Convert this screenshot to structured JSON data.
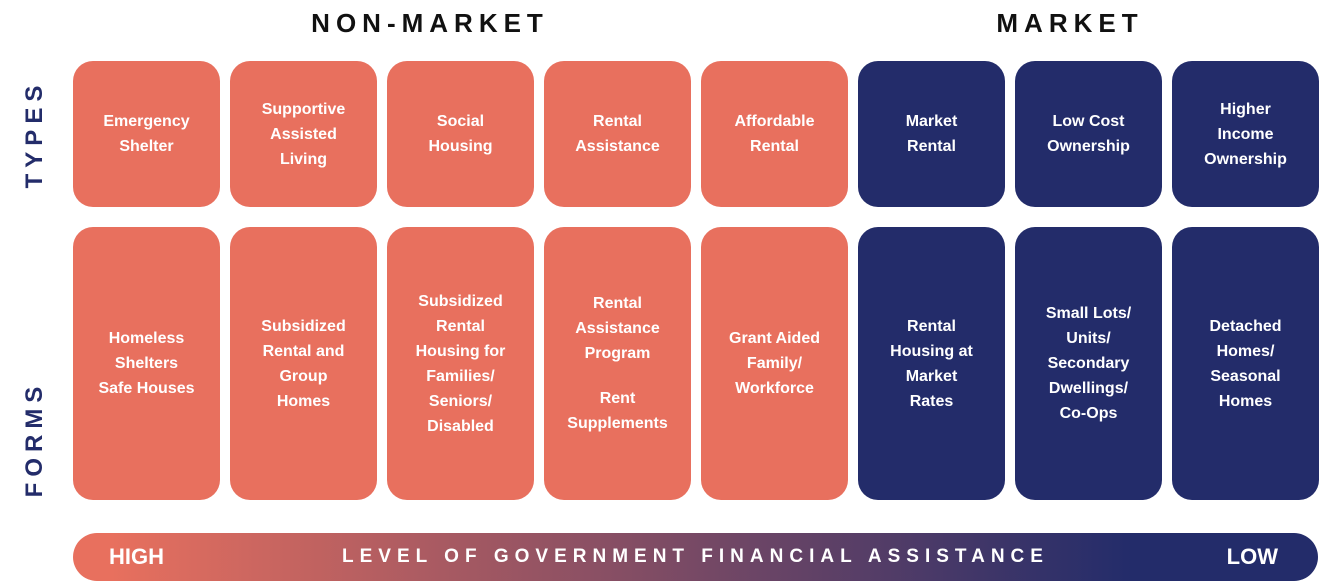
{
  "header": {
    "non_market": "NON-MARKET",
    "market": "MARKET"
  },
  "row_labels": {
    "types": "TYPES",
    "forms": "FORMS"
  },
  "columns": [
    {
      "color": "#e8705e",
      "type": [
        [
          "Emergency",
          "Shelter"
        ]
      ],
      "form": [
        [
          "Homeless",
          "Shelters",
          "Safe Houses"
        ]
      ]
    },
    {
      "color": "#e8705e",
      "type": [
        [
          "Supportive",
          "Assisted",
          "Living"
        ]
      ],
      "form": [
        [
          "Subsidized",
          "Rental and",
          "Group",
          "Homes"
        ]
      ]
    },
    {
      "color": "#e8705e",
      "type": [
        [
          "Social",
          "Housing"
        ]
      ],
      "form": [
        [
          "Subsidized",
          "Rental",
          "Housing for",
          "Families/",
          "Seniors/",
          "Disabled"
        ]
      ]
    },
    {
      "color": "#e8705e",
      "type": [
        [
          "Rental",
          "Assistance"
        ]
      ],
      "form": [
        [
          "Rental",
          "Assistance",
          "Program"
        ],
        [
          "Rent",
          "Supplements"
        ]
      ]
    },
    {
      "color": "#e8705e",
      "type": [
        [
          "Affordable",
          "Rental"
        ]
      ],
      "form": [
        [
          "Grant Aided",
          "Family/",
          "Workforce"
        ]
      ]
    },
    {
      "color": "#232c6a",
      "type": [
        [
          "Market",
          "Rental"
        ]
      ],
      "form": [
        [
          "Rental",
          "Housing at",
          "Market",
          "Rates"
        ]
      ]
    },
    {
      "color": "#232c6a",
      "type": [
        [
          "Low Cost",
          "Ownership"
        ]
      ],
      "form": [
        [
          "Small Lots/",
          "Units/",
          "Secondary",
          "Dwellings/",
          "Co-Ops"
        ]
      ]
    },
    {
      "color": "#232c6a",
      "type": [
        [
          "Higher",
          "Income",
          "Ownership"
        ]
      ],
      "form": [
        [
          "Detached",
          "Homes/",
          "Seasonal",
          "Homes"
        ]
      ]
    }
  ],
  "bar": {
    "high": "HIGH",
    "label": "LEVEL OF GOVERNMENT FINANCIAL ASSISTANCE",
    "low": "LOW",
    "colors": [
      "#e8705e",
      "#232c6a"
    ]
  }
}
